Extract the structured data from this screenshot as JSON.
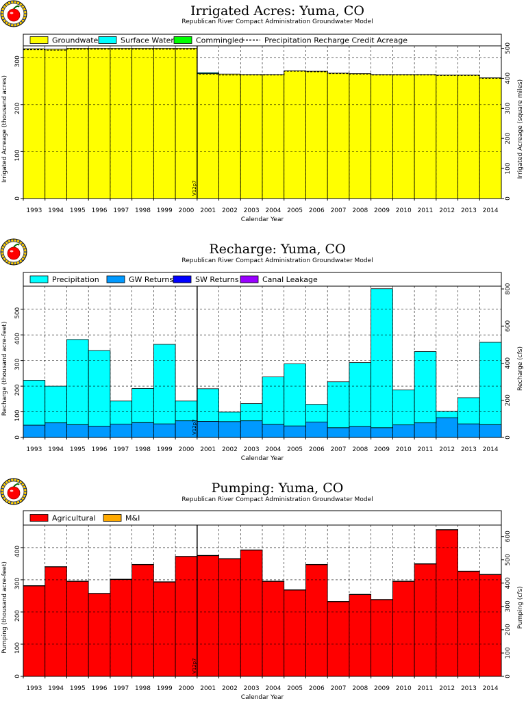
{
  "years": [
    "1993",
    "1994",
    "1995",
    "1996",
    "1997",
    "1998",
    "1999",
    "2000",
    "2001",
    "2002",
    "2003",
    "2004",
    "2005",
    "2006",
    "2007",
    "2008",
    "2009",
    "2010",
    "2011",
    "2012",
    "2013",
    "2014"
  ],
  "colors": {
    "groundwater": "#ffff00",
    "surface_water": "#00ffff",
    "commingled": "#00ff00",
    "gw_returns": "#0099ff",
    "sw_returns": "#0000ff",
    "canal_leakage": "#9900ff",
    "agricultural": "#ff0000",
    "mi": "#ffaa00"
  },
  "logo": {
    "icon": "apple-logo-icon"
  },
  "chart_data": [
    {
      "type": "bar",
      "title": "Irrigated Acres: Yuma, CO",
      "subtitle": "Republican River Compact Administration Groundwater Model",
      "xlabel": "Calendar Year",
      "ylabel": "Irrigated Acreage (thousand acres)",
      "y2label": "Irrigated Acreage (square miles)",
      "ylim": [
        0,
        325
      ],
      "y2lim": [
        0,
        508
      ],
      "yticks": [
        "0",
        "100",
        "200",
        "300"
      ],
      "y2ticks": [
        "0",
        "100",
        "200",
        "300",
        "400",
        "500"
      ],
      "marker_label": "V12p7",
      "legend": {
        "placement": "top",
        "items": [
          {
            "label": "Groundwater",
            "kind": "box",
            "color": "#ffff00"
          },
          {
            "label": "Surface Water",
            "kind": "box",
            "color": "#00ffff"
          },
          {
            "label": "Commingled",
            "kind": "box",
            "color": "#00ff00"
          },
          {
            "label": "Precipitation Recharge Credit Acreage",
            "kind": "dash",
            "color": "#000000"
          }
        ]
      },
      "series": [
        {
          "name": "Groundwater",
          "color": "#ffff00",
          "values": [
            319,
            318,
            320,
            320,
            320,
            320,
            320,
            320,
            266,
            265,
            264,
            264,
            272,
            271,
            267,
            266,
            264,
            264,
            264,
            263,
            263,
            257
          ]
        },
        {
          "name": "Surface Water",
          "color": "#00ffff",
          "values": [
            0,
            0,
            0,
            0,
            0,
            0,
            0,
            0,
            2,
            0,
            0,
            0,
            0,
            0,
            0,
            0,
            0,
            0,
            0,
            0,
            0,
            0
          ]
        },
        {
          "name": "Commingled",
          "color": "#00ff00",
          "values": [
            0,
            0,
            0,
            0,
            0,
            0,
            0,
            0,
            0,
            0,
            0,
            0,
            0,
            0,
            0,
            0,
            0,
            0,
            0,
            0,
            0,
            0
          ]
        }
      ],
      "dashed_line": {
        "name": "Precipitation Recharge Credit Acreage",
        "values": [
          317,
          316,
          318,
          318,
          318,
          318,
          318,
          318,
          265,
          263,
          263,
          263,
          271,
          270,
          266,
          265,
          263,
          263,
          263,
          262,
          262,
          256
        ]
      }
    },
    {
      "type": "bar",
      "title": "Recharge: Yuma, CO",
      "subtitle": "Republican River Compact Administration Groundwater Model",
      "xlabel": "Calendar Year",
      "ylabel": "Recharge (thousand acre-feet)",
      "y2label": "Recharge (cfs)",
      "ylim": [
        0,
        590
      ],
      "y2lim": [
        0,
        815
      ],
      "yticks": [
        "0",
        "100",
        "200",
        "300",
        "400",
        "500"
      ],
      "y2ticks": [
        "0",
        "200",
        "400",
        "600",
        "800"
      ],
      "marker_label": "V12p7",
      "legend": {
        "placement": "top",
        "items": [
          {
            "label": "Precipitation",
            "kind": "box",
            "color": "#00ffff"
          },
          {
            "label": "GW Returns",
            "kind": "box",
            "color": "#0099ff"
          },
          {
            "label": "SW Returns",
            "kind": "box",
            "color": "#0000ff"
          },
          {
            "label": "Canal Leakage",
            "kind": "box",
            "color": "#9900ff"
          }
        ]
      },
      "series": [
        {
          "name": "GW Returns",
          "color": "#0099ff",
          "values": [
            48,
            57,
            50,
            44,
            52,
            58,
            53,
            65,
            63,
            62,
            65,
            51,
            45,
            60,
            38,
            43,
            38,
            49,
            57,
            77,
            53,
            50
          ]
        },
        {
          "name": "SW Returns",
          "color": "#0000ff",
          "values": [
            0,
            0,
            0,
            0,
            0,
            0,
            0,
            0,
            0,
            0,
            0,
            0,
            0,
            0,
            0,
            0,
            0,
            0,
            0,
            0,
            0,
            0
          ]
        },
        {
          "name": "Canal Leakage",
          "color": "#9900ff",
          "values": [
            0,
            0,
            0,
            0,
            0,
            0,
            0,
            0,
            0,
            0,
            0,
            0,
            0,
            0,
            0,
            0,
            0,
            0,
            0,
            0,
            0,
            0
          ]
        },
        {
          "name": "Precipitation",
          "color": "#00ffff",
          "values": [
            175,
            143,
            332,
            295,
            90,
            133,
            310,
            77,
            127,
            37,
            67,
            185,
            242,
            69,
            179,
            249,
            542,
            136,
            278,
            25,
            102,
            321
          ]
        }
      ]
    },
    {
      "type": "bar",
      "title": "Pumping: Yuma, CO",
      "subtitle": "Republican River Compact Administration Groundwater Model",
      "xlabel": "Calendar Year",
      "ylabel": "Pumping (thousand acre-feet)",
      "y2label": "Pumping (cfs)",
      "ylim": [
        0,
        470
      ],
      "y2lim": [
        0,
        649
      ],
      "yticks": [
        "0",
        "100",
        "200",
        "300",
        "400"
      ],
      "y2ticks": [
        "0",
        "100",
        "200",
        "300",
        "400",
        "500",
        "600"
      ],
      "marker_label": "V12p7",
      "legend": {
        "placement": "top",
        "items": [
          {
            "label": "Agricultural",
            "kind": "box",
            "color": "#ff0000"
          },
          {
            "label": "M&I",
            "kind": "box",
            "color": "#ffaa00"
          }
        ]
      },
      "series": [
        {
          "name": "Agricultural",
          "color": "#ff0000",
          "values": [
            281,
            340,
            295,
            257,
            301,
            347,
            293,
            372,
            375,
            365,
            392,
            295,
            268,
            347,
            232,
            254,
            238,
            295,
            349,
            455,
            326,
            316
          ]
        },
        {
          "name": "M&I",
          "color": "#ffaa00",
          "values": [
            1,
            1,
            1,
            1,
            1,
            1,
            1,
            1,
            1,
            1,
            1,
            1,
            1,
            1,
            1,
            1,
            1,
            1,
            1,
            1,
            1,
            1
          ]
        }
      ]
    }
  ]
}
